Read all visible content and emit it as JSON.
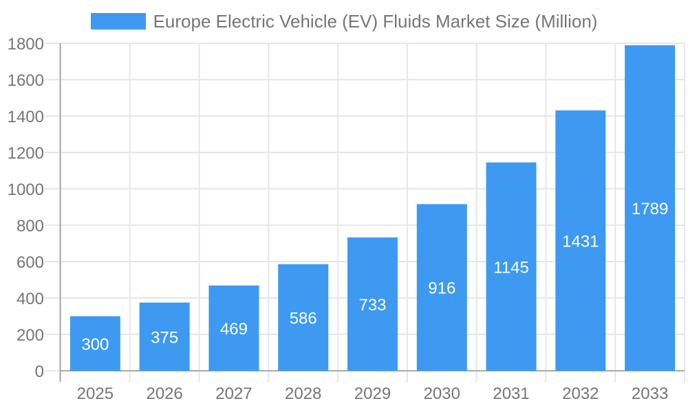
{
  "chart_data": {
    "type": "bar",
    "title": "Europe Electric Vehicle (EV) Fluids Market Size (Million)",
    "categories": [
      "2025",
      "2026",
      "2027",
      "2028",
      "2029",
      "2030",
      "2031",
      "2032",
      "2033"
    ],
    "values": [
      300,
      375,
      469,
      586,
      733,
      916,
      1145,
      1431,
      1789
    ],
    "series": [
      {
        "name": "Europe Electric Vehicle (EV) Fluids Market Size (Million)",
        "values": [
          300,
          375,
          469,
          586,
          733,
          916,
          1145,
          1431,
          1789
        ]
      }
    ],
    "xlabel": "",
    "ylabel": "",
    "ylim": [
      0,
      1800
    ],
    "ytick_step": 200,
    "grid": "both",
    "legend_position": "top-center",
    "value_label_style": "inside-center-white",
    "colors": {
      "bar": "#3d9af0",
      "label": "#757575",
      "gridline": "#e6e6e6",
      "axis": "#a9a9a9",
      "value_label": "#ffffff",
      "background": "#ffffff"
    }
  }
}
